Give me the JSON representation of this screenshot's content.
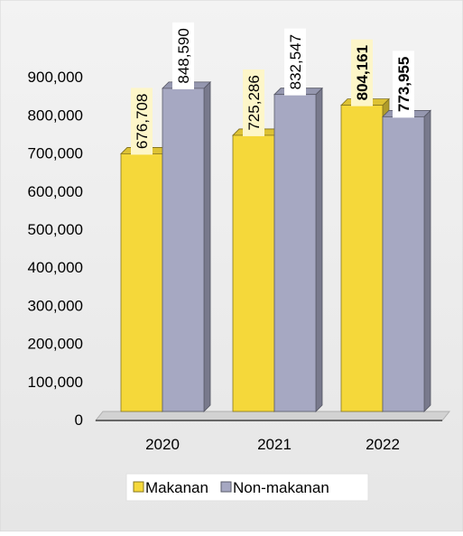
{
  "chart_data": {
    "type": "bar",
    "categories": [
      "2020",
      "2021",
      "2022"
    ],
    "series": [
      {
        "name": "Makanan",
        "values": [
          676708,
          725286,
          804161
        ],
        "color": "#F5D83A",
        "label_bold": [
          false,
          false,
          true
        ]
      },
      {
        "name": "Non-makanan",
        "values": [
          848590,
          832547,
          773955
        ],
        "color": "#A6A8C2",
        "label_bold": [
          false,
          false,
          true
        ]
      }
    ],
    "value_labels": [
      [
        "676,708",
        "725,286",
        "804,161"
      ],
      [
        "848,590",
        "832,547",
        "773,955"
      ]
    ],
    "y_ticks": [
      "0",
      "100,000",
      "200,000",
      "300,000",
      "400,000",
      "500,000",
      "600,000",
      "700,000",
      "800,000",
      "900,000"
    ],
    "ylim": [
      0,
      900000
    ],
    "title": "",
    "xlabel": "",
    "ylabel": "",
    "grid": false,
    "legend_position": "bottom",
    "style": "3d-clustered-bar",
    "background_color": "#ECECEC"
  }
}
